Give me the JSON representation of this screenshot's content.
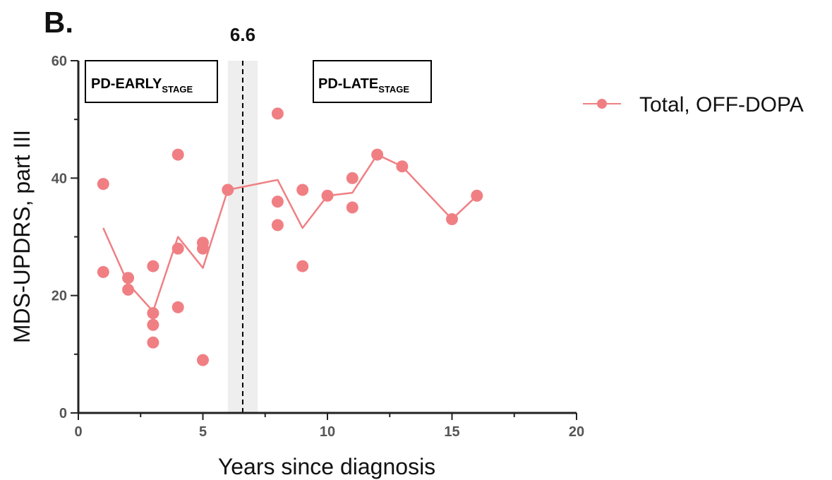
{
  "panel_label": "B.",
  "chart_data": {
    "type": "scatter",
    "xlabel": "Years since diagnosis",
    "ylabel": "MDS-UPDRS, part III",
    "xlim": [
      0,
      20
    ],
    "ylim": [
      0,
      60
    ],
    "x_ticks": [
      0,
      5,
      10,
      15,
      20
    ],
    "y_ticks": [
      0,
      20,
      40,
      60
    ],
    "grid": false,
    "legend_position": "top-right",
    "threshold": {
      "value": 6.6,
      "label": "6.6",
      "band": [
        6,
        7.2
      ],
      "band_color": "#eeeeee"
    },
    "stage_boxes": [
      {
        "main": "PD-EARLY",
        "sub": "STAGE"
      },
      {
        "main": "PD-LATE",
        "sub": "STAGE"
      }
    ],
    "series": [
      {
        "name": "Total, OFF-DOPA",
        "color": "#f07f83",
        "points": [
          [
            1,
            39
          ],
          [
            1,
            24
          ],
          [
            2,
            23
          ],
          [
            2,
            21
          ],
          [
            3,
            25
          ],
          [
            3,
            17
          ],
          [
            3,
            15
          ],
          [
            3,
            12
          ],
          [
            4,
            44
          ],
          [
            4,
            28
          ],
          [
            4,
            18
          ],
          [
            5,
            29
          ],
          [
            5,
            28
          ],
          [
            5,
            9
          ],
          [
            6,
            38
          ],
          [
            8,
            51
          ],
          [
            8,
            36
          ],
          [
            8,
            32
          ],
          [
            9,
            38
          ],
          [
            9,
            25
          ],
          [
            10,
            37
          ],
          [
            11,
            40
          ],
          [
            11,
            35
          ],
          [
            12,
            44
          ],
          [
            13,
            42
          ],
          [
            15,
            33
          ],
          [
            16,
            37
          ]
        ],
        "line": [
          [
            1,
            31.5
          ],
          [
            2,
            22
          ],
          [
            3,
            17.3
          ],
          [
            4,
            30
          ],
          [
            5,
            24.7
          ],
          [
            6,
            38
          ],
          [
            8,
            39.7
          ],
          [
            9,
            31.5
          ],
          [
            10,
            37
          ],
          [
            11,
            37.5
          ],
          [
            12,
            44
          ],
          [
            13,
            42
          ],
          [
            15,
            33
          ],
          [
            16,
            37
          ]
        ]
      }
    ]
  }
}
